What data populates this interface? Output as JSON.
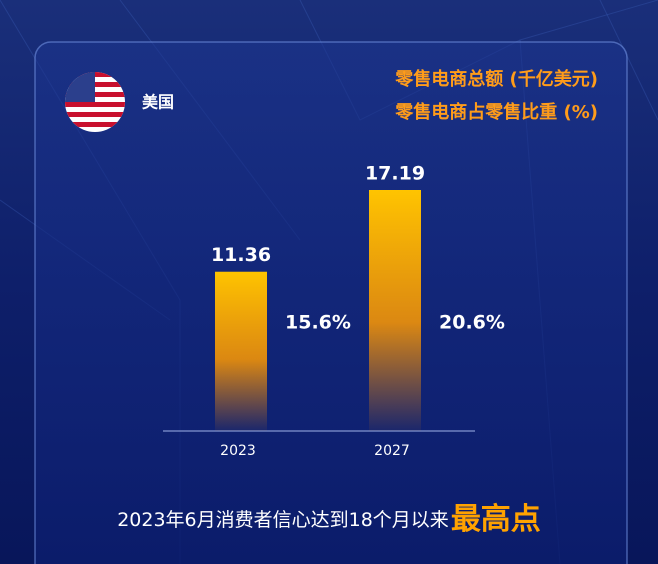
{
  "chart_data": {
    "type": "bar",
    "country": "美国",
    "categories": [
      "2023",
      "2027"
    ],
    "series": [
      {
        "name": "零售电商总额 (千亿美元)",
        "color": "#ffb300",
        "values": [
          11.36,
          17.19
        ]
      },
      {
        "name": "零售电商占零售比重 (%)",
        "color": "#ffffff",
        "values": [
          15.6,
          20.6
        ],
        "value_labels": [
          "15.6%",
          "20.6%"
        ]
      }
    ],
    "footnote": "2023年6月消费者信心达到18个月以来",
    "highlight": "最高点"
  }
}
